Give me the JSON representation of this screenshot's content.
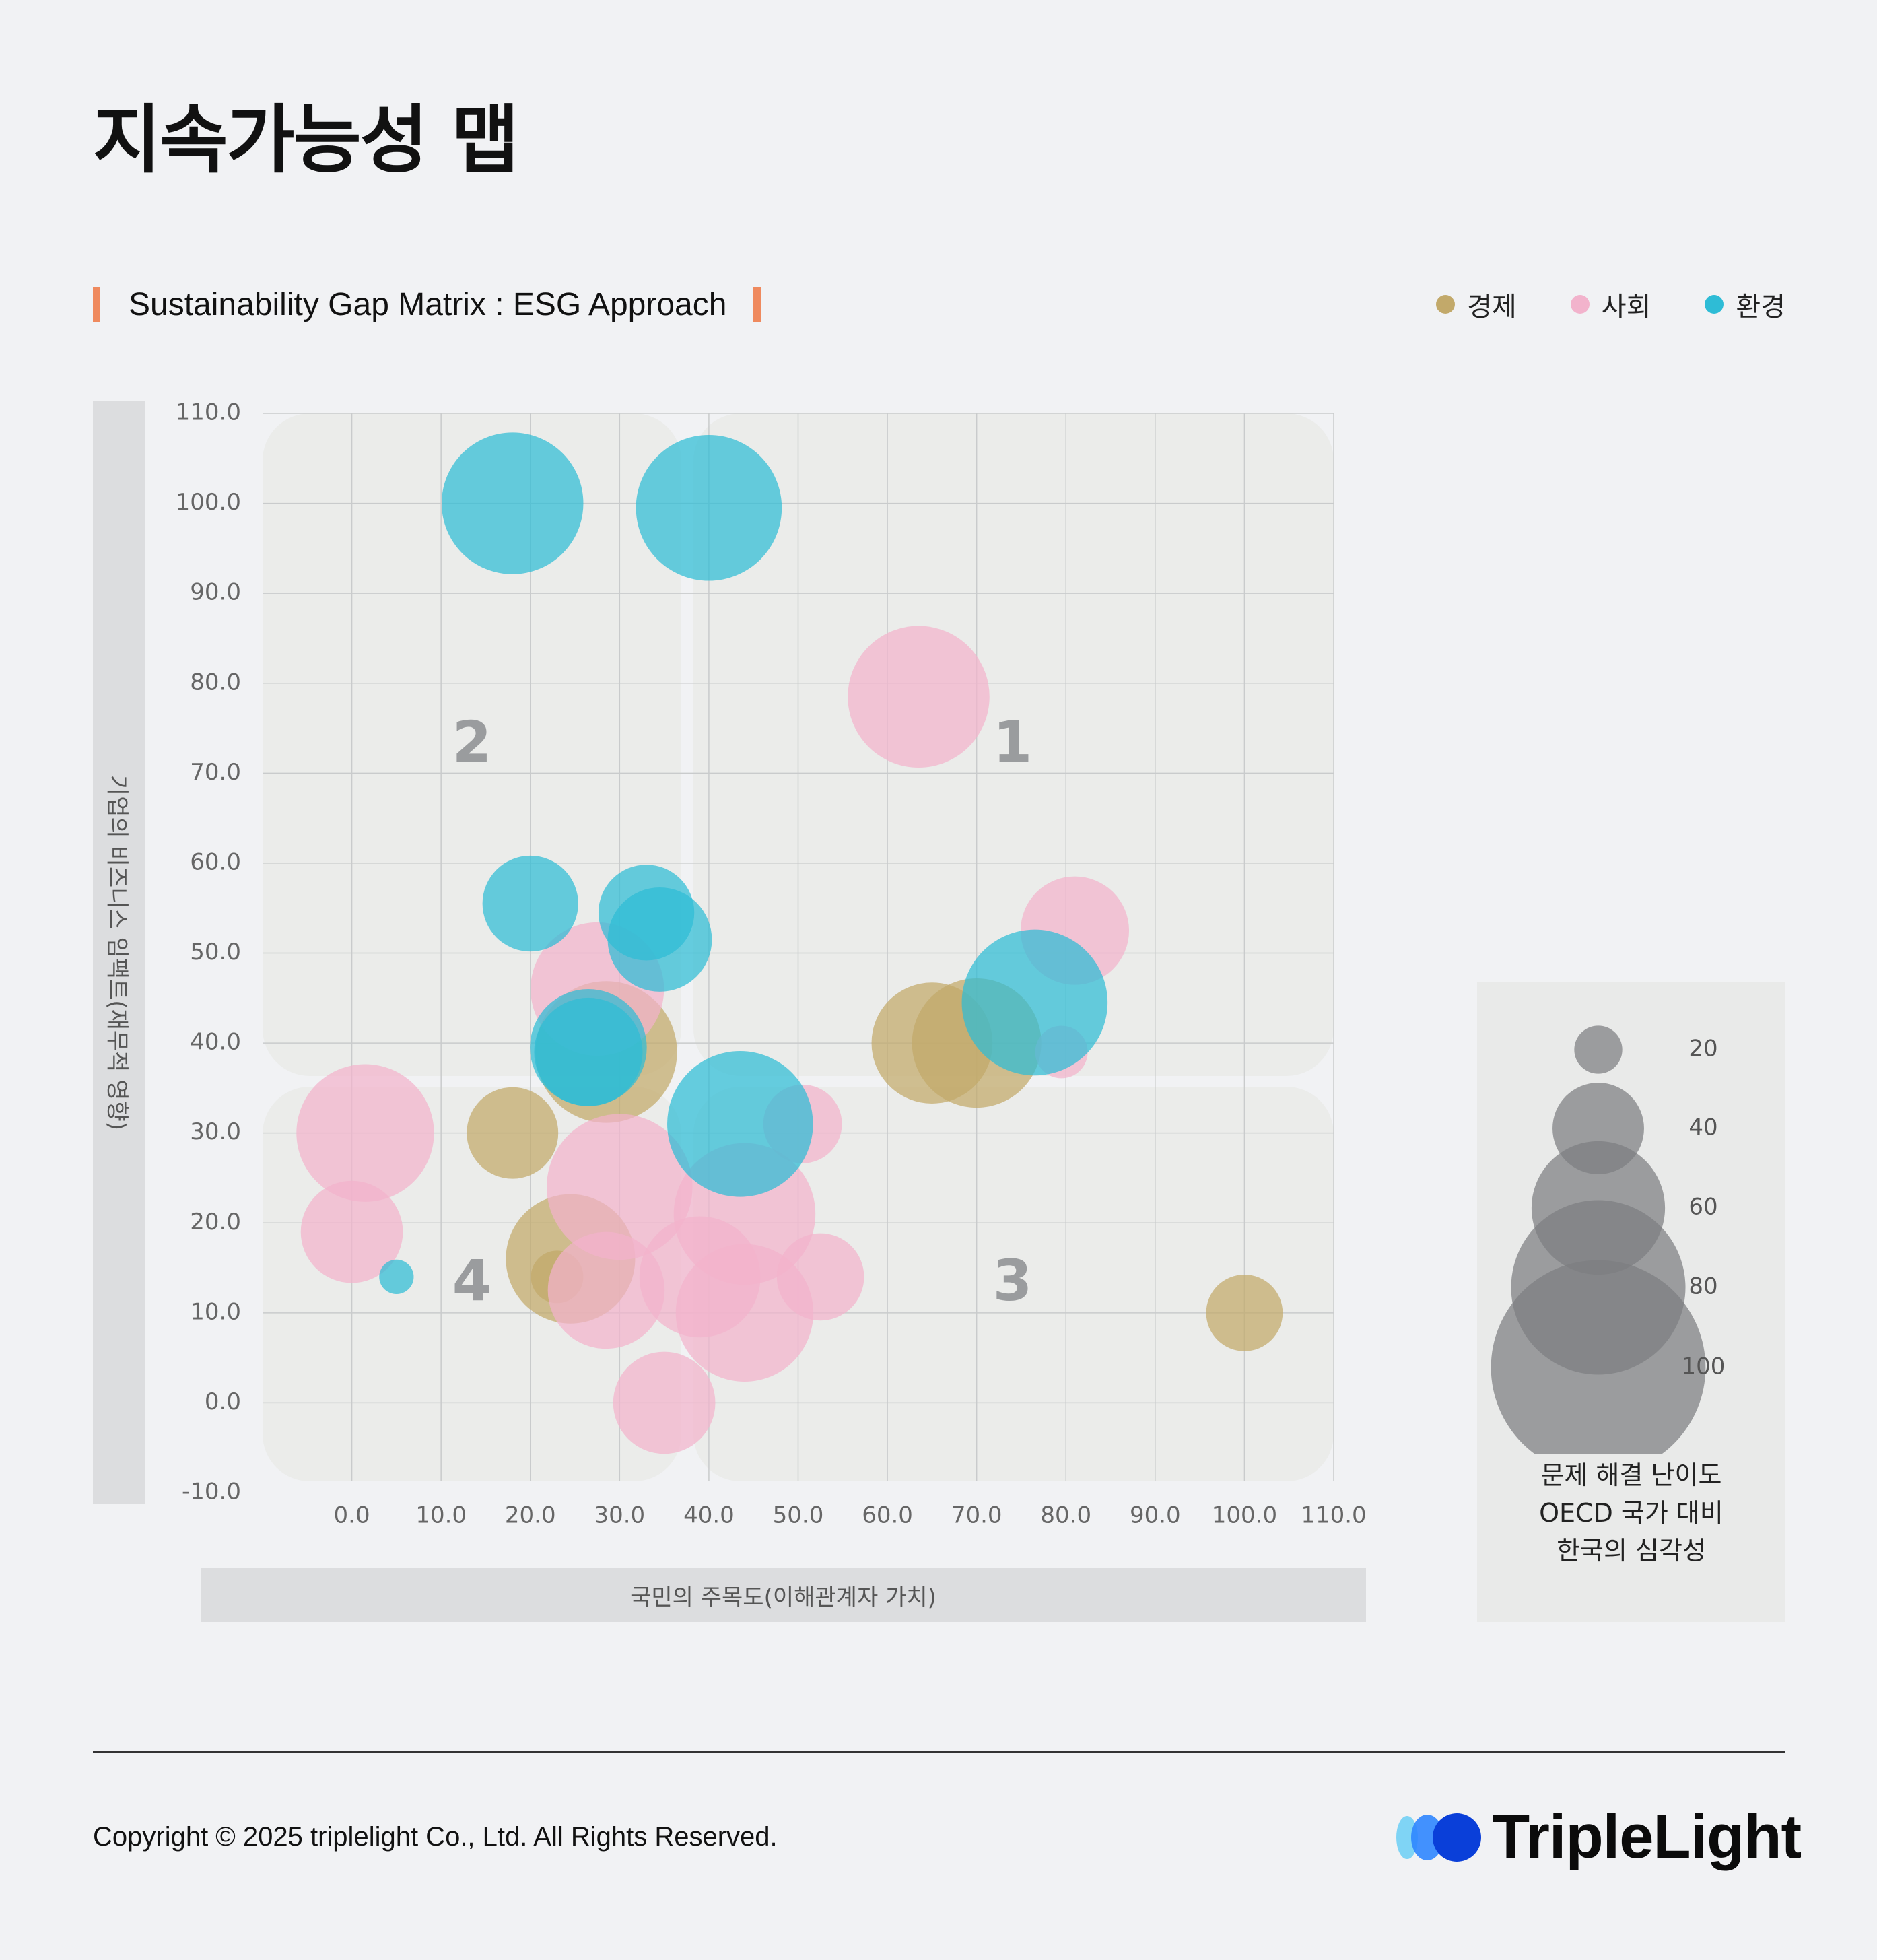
{
  "page": {
    "title": "지속가능성 맵",
    "subtitle": "Sustainability Gap Matrix : ESG Approach",
    "copyright": "Copyright © 2025 triplelight Co., Ltd. All Rights Reserved.",
    "brand_name": "TripleLight",
    "brand_colors": [
      "#7fd4f5",
      "#2f86ff",
      "#0a3fd9"
    ]
  },
  "legend": [
    {
      "label": "경제",
      "color": "#c2a96a"
    },
    {
      "label": "사회",
      "color": "#f2b3cc"
    },
    {
      "label": "환경",
      "color": "#2ebcd6"
    }
  ],
  "size_legend": {
    "values": [
      20,
      40,
      60,
      80,
      100
    ],
    "caption": [
      "문제 해결 난이도",
      "OECD 국가 대비",
      "한국의 심각성"
    ]
  },
  "chart_data": {
    "type": "scatter",
    "subtype": "bubble",
    "title": "Sustainability Gap Matrix : ESG Approach",
    "xlabel": "국민의 주목도(이해관계자 가치)",
    "ylabel": "기업의 비즈니스 임팩트(재무적 영향)",
    "xlim": [
      -10,
      110
    ],
    "ylim": [
      -10,
      110
    ],
    "x_ticks": [
      "0.0",
      "10.0",
      "20.0",
      "30.0",
      "40.0",
      "50.0",
      "60.0",
      "70.0",
      "80.0",
      "90.0",
      "100.0",
      "110.0"
    ],
    "y_ticks": [
      "110.0",
      "100.0",
      "90.0",
      "80.0",
      "70.0",
      "60.0",
      "50.0",
      "40.0",
      "30.0",
      "20.0",
      "10.0",
      "0.0",
      "-10.0"
    ],
    "grid": true,
    "quadrant_labels": [
      "1",
      "2",
      "3",
      "4"
    ],
    "size_label": "문제 해결 난이도 / OECD 국가 대비 / 한국의 심각성",
    "series": [
      {
        "name": "경제",
        "color": "#c2a96a",
        "points": [
          {
            "x": 18,
            "y": 30,
            "size": 40
          },
          {
            "x": 24.5,
            "y": 16,
            "size": 58
          },
          {
            "x": 23,
            "y": 14,
            "size": 22
          },
          {
            "x": 28.5,
            "y": 39,
            "size": 64
          },
          {
            "x": 65,
            "y": 40,
            "size": 54
          },
          {
            "x": 70,
            "y": 40,
            "size": 58
          },
          {
            "x": 100,
            "y": 10,
            "size": 33
          }
        ]
      },
      {
        "name": "사회",
        "color": "#f2b3cc",
        "points": [
          {
            "x": 1.5,
            "y": 30,
            "size": 62
          },
          {
            "x": 0,
            "y": 19,
            "size": 45
          },
          {
            "x": 27.5,
            "y": 46,
            "size": 60
          },
          {
            "x": 30,
            "y": 24,
            "size": 66
          },
          {
            "x": 28.5,
            "y": 12.5,
            "size": 52
          },
          {
            "x": 35,
            "y": 0,
            "size": 45
          },
          {
            "x": 39,
            "y": 14,
            "size": 54
          },
          {
            "x": 44,
            "y": 21,
            "size": 64
          },
          {
            "x": 44,
            "y": 10,
            "size": 62
          },
          {
            "x": 50.5,
            "y": 31,
            "size": 34
          },
          {
            "x": 52.5,
            "y": 14,
            "size": 38
          },
          {
            "x": 63.5,
            "y": 78.5,
            "size": 64
          },
          {
            "x": 81,
            "y": 52.5,
            "size": 48
          },
          {
            "x": 79.5,
            "y": 39,
            "size": 22
          }
        ]
      },
      {
        "name": "환경",
        "color": "#2ebcd6",
        "points": [
          {
            "x": 18,
            "y": 100,
            "size": 64
          },
          {
            "x": 40,
            "y": 99.5,
            "size": 66
          },
          {
            "x": 20,
            "y": 55.5,
            "size": 42
          },
          {
            "x": 33,
            "y": 54.5,
            "size": 42
          },
          {
            "x": 34.5,
            "y": 51.5,
            "size": 46
          },
          {
            "x": 26.5,
            "y": 39.5,
            "size": 52
          },
          {
            "x": 26.5,
            "y": 39,
            "size": 48
          },
          {
            "x": 43.5,
            "y": 31,
            "size": 66
          },
          {
            "x": 76.5,
            "y": 44.5,
            "size": 66
          },
          {
            "x": 5,
            "y": 14,
            "size": 14
          }
        ]
      }
    ]
  }
}
